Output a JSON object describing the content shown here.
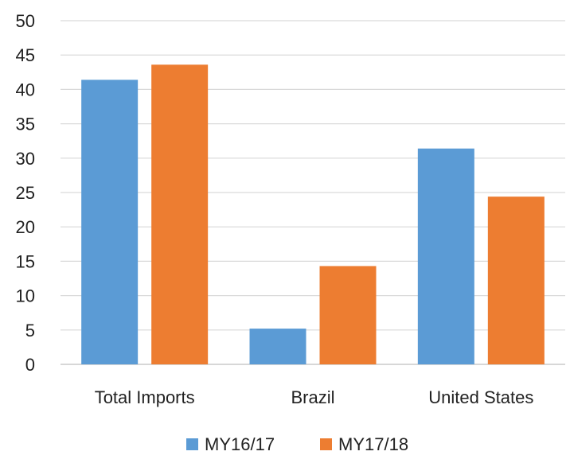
{
  "chart_data": {
    "type": "bar",
    "categories": [
      "Total Imports",
      "Brazil",
      "United States"
    ],
    "series": [
      {
        "name": "MY16/17",
        "values": [
          41.4,
          5.2,
          31.4
        ],
        "color": "#5b9bd5"
      },
      {
        "name": "MY17/18",
        "values": [
          43.6,
          14.3,
          24.4
        ],
        "color": "#ed7d31"
      }
    ],
    "y_ticks": [
      "0",
      "5",
      "10",
      "15",
      "20",
      "25",
      "30",
      "35",
      "40",
      "45",
      "50"
    ],
    "ylim": [
      0,
      50
    ],
    "grid": true,
    "legend_position": "bottom",
    "gridline_color": "#d9d9d9",
    "axis_color": "#bfbfbf"
  }
}
